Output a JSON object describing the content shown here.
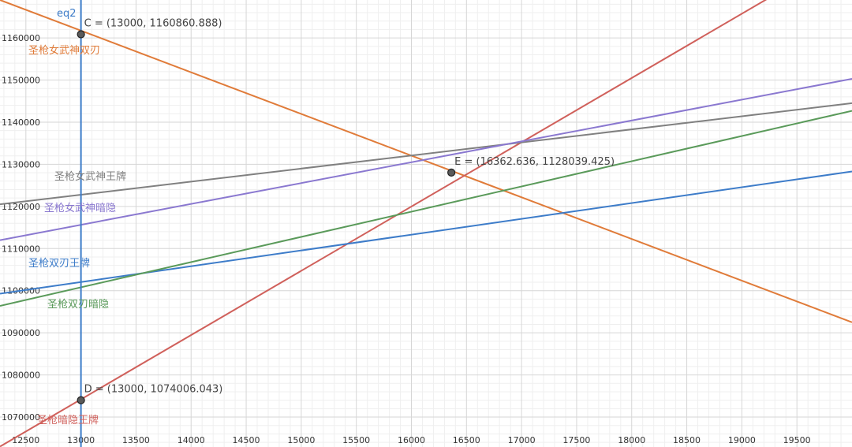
{
  "chart_data": {
    "type": "line",
    "xlim": [
      12265,
      20000
    ],
    "ylim": [
      1062900,
      1169000
    ],
    "grid": true,
    "x_ticks": [
      "12500",
      "13000",
      "13500",
      "14000",
      "14500",
      "15000",
      "15500",
      "16000",
      "16500",
      "17000",
      "17500",
      "18000",
      "18500",
      "19000",
      "19500"
    ],
    "x_tick_values": [
      12500,
      13000,
      13500,
      14000,
      14500,
      15000,
      15500,
      16000,
      16500,
      17000,
      17500,
      18000,
      18500,
      19000,
      19500
    ],
    "y_ticks": [
      "1070000",
      "1080000",
      "1090000",
      "1100000",
      "1110000",
      "1120000",
      "1130000",
      "1140000",
      "1150000",
      "1160000"
    ],
    "y_tick_values": [
      1070000,
      1080000,
      1090000,
      1100000,
      1110000,
      1120000,
      1130000,
      1140000,
      1150000,
      1160000
    ],
    "vertical_line": {
      "name": "eq2",
      "x": 13000,
      "color": "#3d7cc9"
    },
    "series": [
      {
        "name": "圣枪女武神双刃",
        "color": "#e07b39",
        "x": [
          12265,
          20000
        ],
        "y": [
          1169000,
          1092500
        ]
      },
      {
        "name": "圣枪暗隐王牌",
        "color": "#d0605b",
        "x": [
          12265,
          20000
        ],
        "y": [
          1063000,
          1181000
        ]
      },
      {
        "name": "圣枪女武神王牌",
        "color": "#808080",
        "x": [
          12265,
          20000
        ],
        "y": [
          1120500,
          1144500
        ]
      },
      {
        "name": "圣枪女武神暗隐",
        "color": "#8a78d0",
        "x": [
          12265,
          20000
        ],
        "y": [
          1112000,
          1150300
        ]
      },
      {
        "name": "圣枪双刃王牌",
        "color": "#3d7cc9",
        "x": [
          12265,
          20000
        ],
        "y": [
          1099300,
          1128300
        ]
      },
      {
        "name": "圣枪双刃暗隐",
        "color": "#5a9a5a",
        "x": [
          12265,
          20000
        ],
        "y": [
          1096400,
          1142700
        ]
      }
    ],
    "points": [
      {
        "label": "C = (13000, 1160860.888)",
        "x": 13000,
        "y": 1160860.888
      },
      {
        "label": "D = (13000, 1074006.043)",
        "x": 13000,
        "y": 1074006.043
      },
      {
        "label": "E = (16362.636, 1128039.425)",
        "x": 16362.636,
        "y": 1128039.425
      }
    ]
  }
}
